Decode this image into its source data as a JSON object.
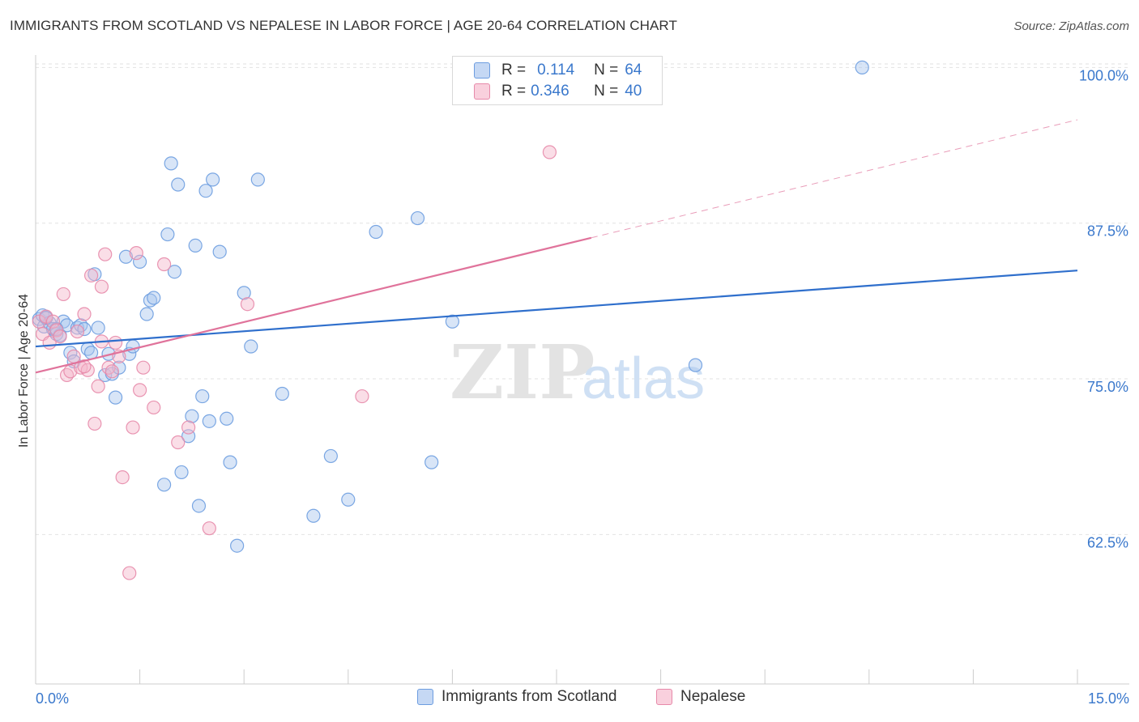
{
  "chart_data": {
    "type": "scatter",
    "title": "IMMIGRANTS FROM SCOTLAND VS NEPALESE IN LABOR FORCE | AGE 20-64 CORRELATION CHART",
    "source": "Source: ZipAtlas.com",
    "ylabel": "In Labor Force | Age 20-64",
    "xlabel": "",
    "xlim": [
      0,
      15
    ],
    "ylim": [
      50.5,
      101
    ],
    "x_tick_labels": [
      "0.0%",
      "15.0%"
    ],
    "y_ticks": [
      62.5,
      75.0,
      87.5,
      100.0
    ],
    "y_tick_labels": [
      "62.5%",
      "75.0%",
      "87.5%",
      "100.0%"
    ],
    "grid": true,
    "watermark": {
      "zip": "ZIP",
      "atlas": "atlas"
    },
    "legend_position": "top-center",
    "stats": [
      {
        "r_label": "R =",
        "r_value": "0.114",
        "n_label": "N =",
        "n_value": "64"
      },
      {
        "r_label": "R =",
        "r_value": "0.346",
        "n_label": "N =",
        "n_value": "40"
      }
    ],
    "series": [
      {
        "name": "Immigrants from Scotland",
        "color": "#6d9de0",
        "fill": "#a8c6ee",
        "trend": {
          "x0": 0,
          "y0": 77.6,
          "x1": 15,
          "y1": 83.7,
          "dashed_from": null
        },
        "points": [
          [
            0.05,
            79.8
          ],
          [
            0.1,
            80.1
          ],
          [
            0.12,
            79.2
          ],
          [
            0.15,
            79.9
          ],
          [
            0.2,
            79.5
          ],
          [
            0.25,
            79.0
          ],
          [
            0.3,
            78.6
          ],
          [
            0.35,
            78.5
          ],
          [
            0.4,
            79.6
          ],
          [
            0.45,
            79.3
          ],
          [
            0.5,
            77.1
          ],
          [
            0.55,
            76.4
          ],
          [
            0.6,
            79.1
          ],
          [
            0.65,
            79.3
          ],
          [
            0.7,
            79.0
          ],
          [
            0.75,
            77.4
          ],
          [
            0.8,
            77.1
          ],
          [
            0.85,
            83.4
          ],
          [
            0.9,
            79.1
          ],
          [
            1.0,
            75.3
          ],
          [
            1.05,
            77.0
          ],
          [
            1.1,
            75.4
          ],
          [
            1.15,
            73.5
          ],
          [
            1.2,
            75.9
          ],
          [
            1.3,
            84.8
          ],
          [
            1.35,
            77.0
          ],
          [
            1.4,
            77.6
          ],
          [
            1.5,
            84.4
          ],
          [
            1.6,
            80.2
          ],
          [
            1.65,
            81.3
          ],
          [
            1.7,
            81.5
          ],
          [
            1.85,
            66.5
          ],
          [
            1.9,
            86.6
          ],
          [
            2.0,
            83.6
          ],
          [
            2.05,
            90.6
          ],
          [
            2.1,
            67.5
          ],
          [
            2.2,
            70.4
          ],
          [
            2.25,
            72.0
          ],
          [
            2.3,
            85.7
          ],
          [
            2.35,
            64.8
          ],
          [
            2.45,
            90.1
          ],
          [
            2.5,
            71.6
          ],
          [
            2.55,
            91.0
          ],
          [
            2.65,
            85.2
          ],
          [
            2.75,
            71.8
          ],
          [
            2.8,
            68.3
          ],
          [
            2.9,
            61.6
          ],
          [
            3.0,
            81.9
          ],
          [
            3.1,
            77.6
          ],
          [
            3.2,
            91.0
          ],
          [
            3.55,
            73.8
          ],
          [
            4.0,
            64.0
          ],
          [
            4.25,
            68.8
          ],
          [
            4.5,
            65.3
          ],
          [
            4.9,
            86.8
          ],
          [
            5.5,
            87.9
          ],
          [
            5.7,
            68.3
          ],
          [
            6.0,
            79.6
          ],
          [
            1.95,
            92.3
          ],
          [
            2.4,
            73.6
          ],
          [
            0.15,
            79.9
          ],
          [
            0.3,
            79.0
          ],
          [
            9.5,
            76.1
          ],
          [
            11.9,
            100.0
          ]
        ]
      },
      {
        "name": "Nepalese",
        "color": "#e78aaa",
        "fill": "#f4b6ca",
        "trend": {
          "x0": 0,
          "y0": 75.5,
          "x1": 15,
          "y1": 95.8,
          "dashed_from": 8.0
        },
        "points": [
          [
            0.05,
            79.6
          ],
          [
            0.1,
            78.6
          ],
          [
            0.15,
            80.0
          ],
          [
            0.2,
            77.9
          ],
          [
            0.25,
            79.6
          ],
          [
            0.3,
            78.9
          ],
          [
            0.35,
            78.4
          ],
          [
            0.4,
            81.8
          ],
          [
            0.45,
            75.3
          ],
          [
            0.5,
            75.6
          ],
          [
            0.55,
            76.8
          ],
          [
            0.6,
            78.8
          ],
          [
            0.65,
            75.9
          ],
          [
            0.7,
            80.2
          ],
          [
            0.75,
            75.7
          ],
          [
            0.8,
            83.3
          ],
          [
            0.85,
            71.4
          ],
          [
            0.9,
            74.4
          ],
          [
            0.95,
            82.4
          ],
          [
            1.0,
            85.0
          ],
          [
            1.05,
            75.9
          ],
          [
            1.1,
            75.6
          ],
          [
            1.15,
            77.9
          ],
          [
            1.2,
            76.8
          ],
          [
            1.25,
            67.1
          ],
          [
            1.35,
            59.4
          ],
          [
            1.4,
            71.1
          ],
          [
            1.45,
            85.1
          ],
          [
            1.5,
            74.1
          ],
          [
            1.55,
            75.9
          ],
          [
            1.7,
            72.7
          ],
          [
            1.85,
            84.2
          ],
          [
            2.05,
            69.9
          ],
          [
            2.2,
            71.1
          ],
          [
            2.5,
            63.0
          ],
          [
            3.05,
            81.0
          ],
          [
            4.7,
            73.6
          ],
          [
            7.4,
            93.2
          ],
          [
            0.95,
            78.0
          ],
          [
            0.7,
            76.0
          ]
        ]
      }
    ]
  }
}
